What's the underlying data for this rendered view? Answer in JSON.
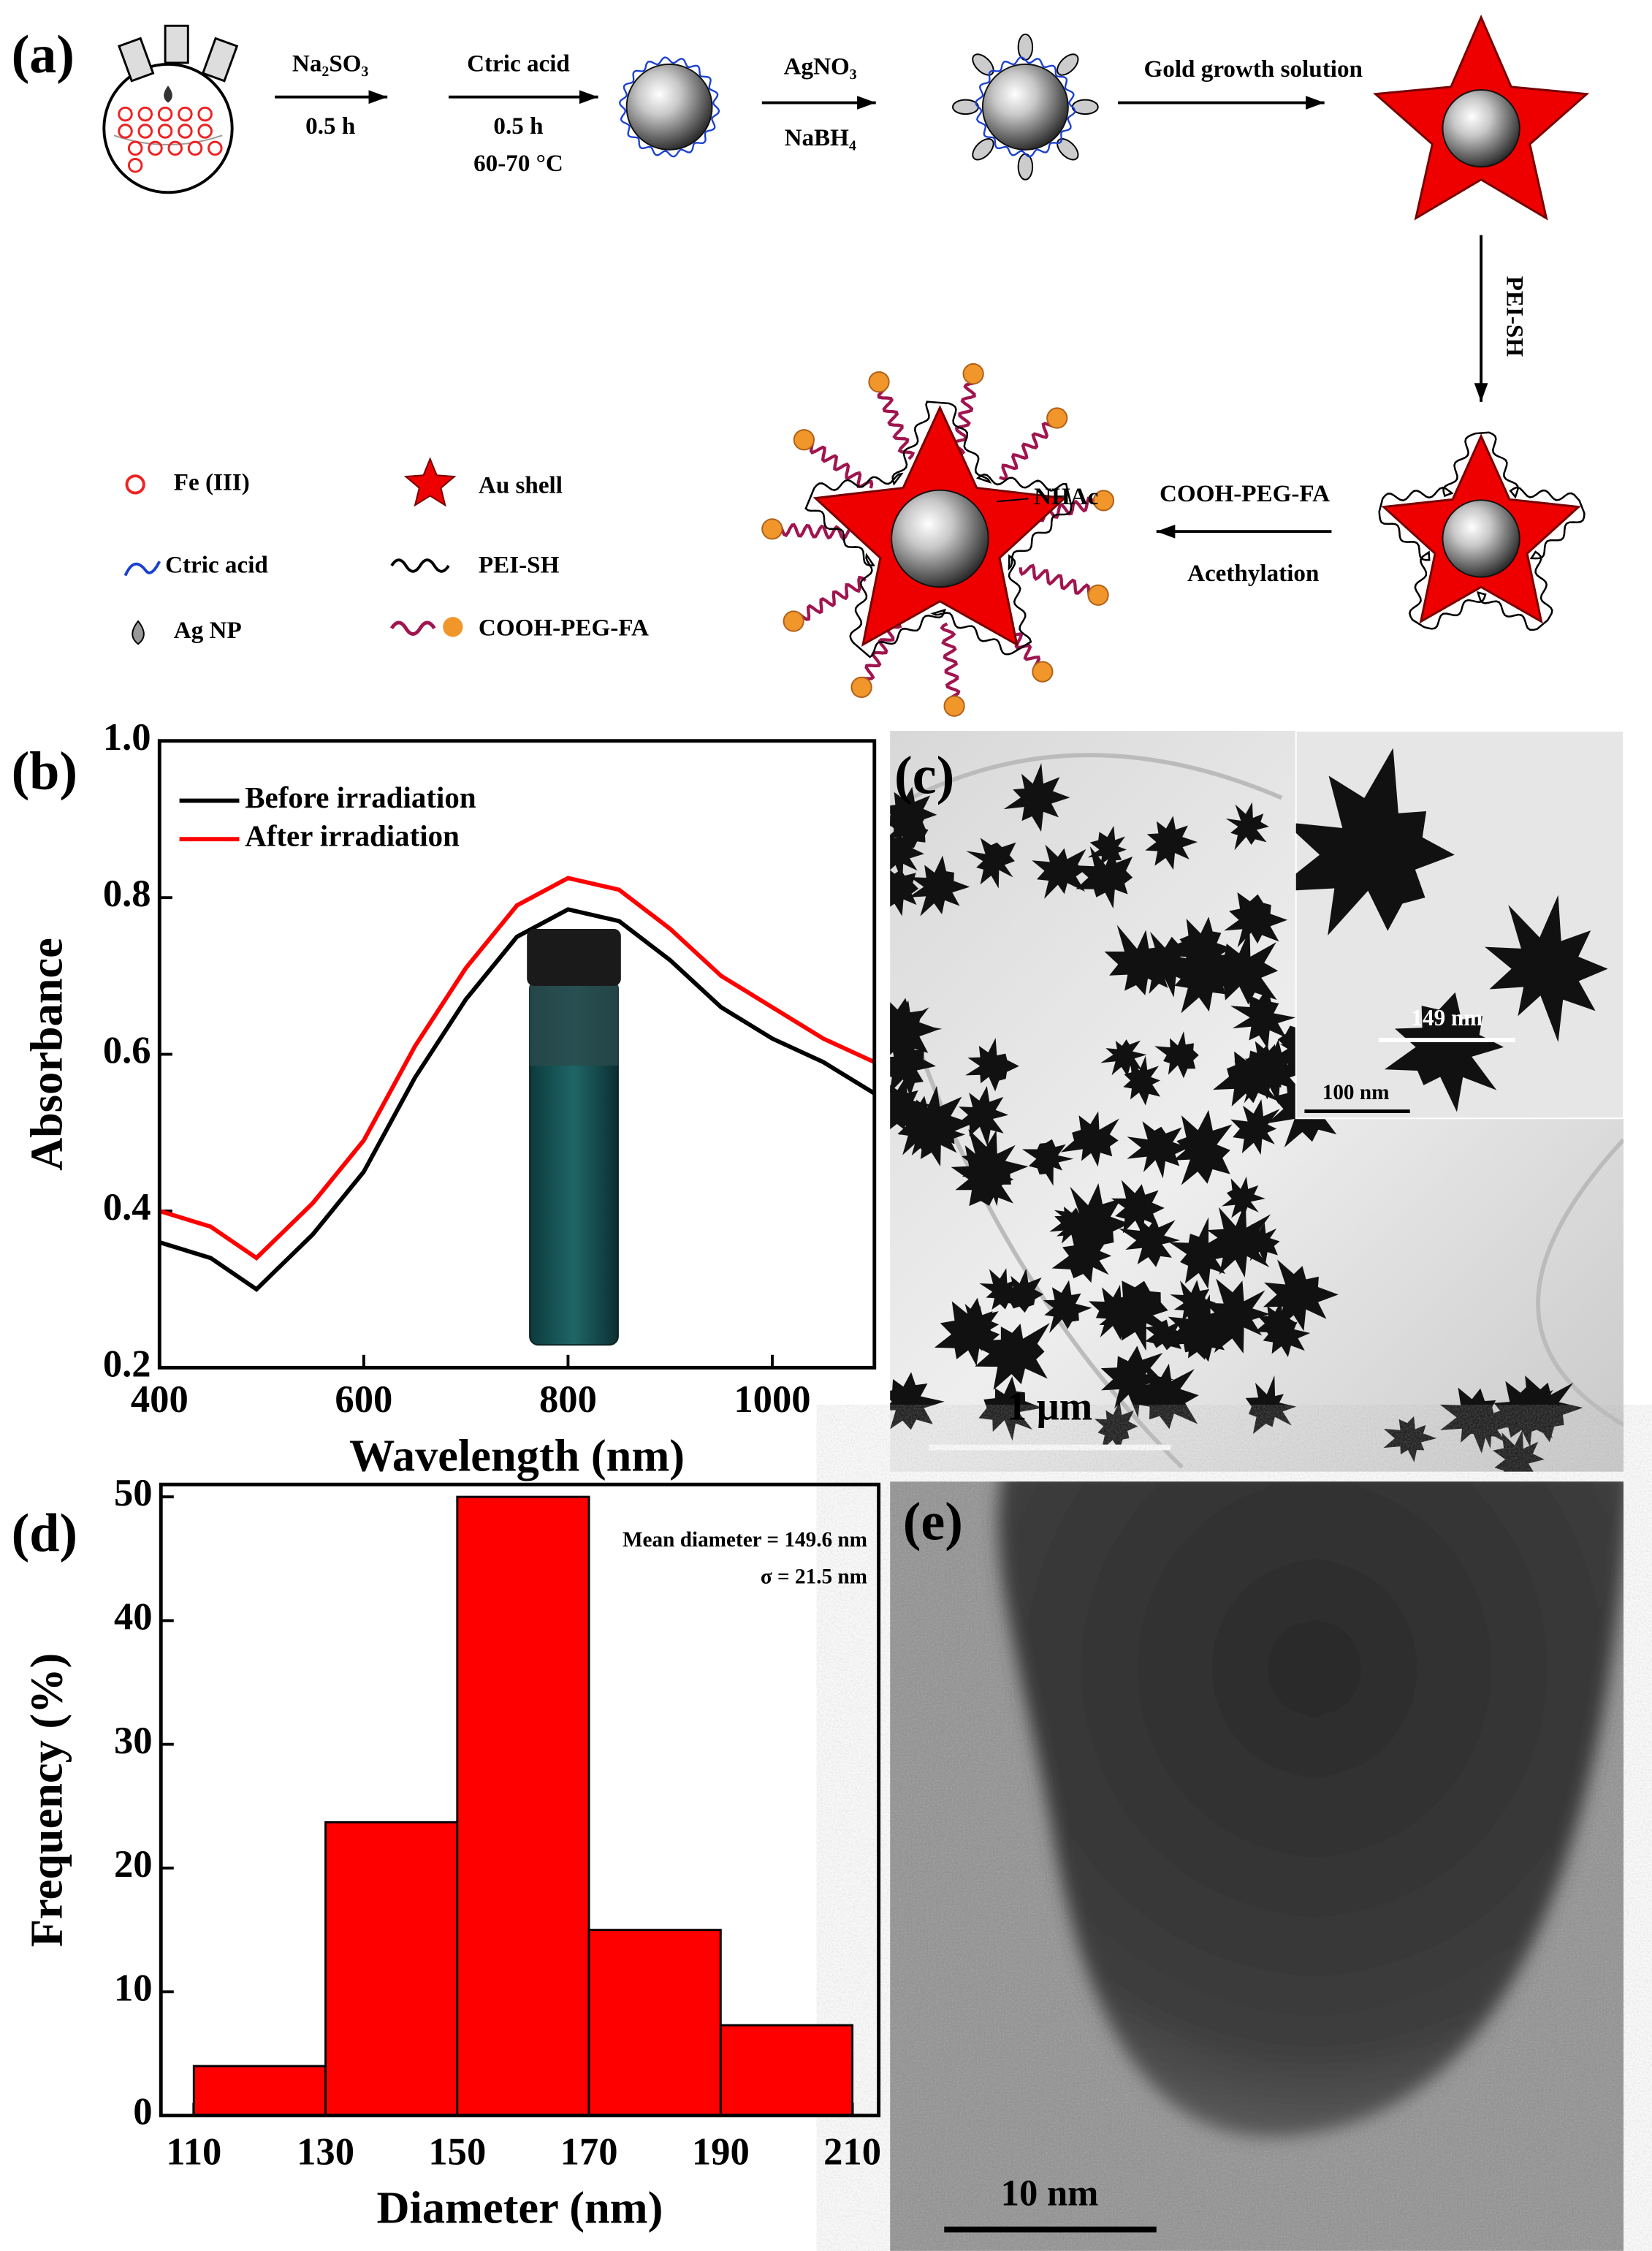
{
  "panel_labels": [
    "(a)",
    "(b)",
    "(c)",
    "(d)",
    "(e)"
  ],
  "diagram": {
    "steps": [
      {
        "reagent": "Na₂SO₃",
        "condition": "0.5 h"
      },
      {
        "reagent": "Ctric acid",
        "condition": "0.5 h",
        "temperature": "60-70 °C"
      },
      {
        "reagent": "AgNO₃",
        "condition": "NaBH₄"
      },
      {
        "reagent": "Gold growth solution"
      },
      {
        "reagent": "PEI-SH"
      },
      {
        "reagent": "COOH-PEG-FA",
        "condition": "Acethylation"
      }
    ],
    "nhac": "NHAc",
    "legend": [
      "Fe (III)",
      "Au shell",
      "Ctric acid",
      "PEI-SH",
      "Ag NP",
      "COOH-PEG-FA"
    ]
  },
  "images": {
    "c": {
      "inset_measure": "149 nm",
      "inset_scale_bar": "100 nm",
      "scale_bar": "1 μm"
    },
    "e": {
      "scale_bar": "10 nm"
    }
  },
  "chart_data": [
    {
      "type": "line",
      "xlabel": "Wavelength (nm)",
      "ylabel": "Absorbance",
      "x": [
        400,
        450,
        495,
        550,
        600,
        650,
        700,
        750,
        800,
        850,
        900,
        950,
        1000,
        1050,
        1100
      ],
      "series": [
        {
          "name": "Before irradiation",
          "color": "#000000",
          "values": [
            0.36,
            0.34,
            0.3,
            0.37,
            0.45,
            0.57,
            0.67,
            0.75,
            0.785,
            0.77,
            0.72,
            0.66,
            0.62,
            0.59,
            0.55
          ]
        },
        {
          "name": "After irradiation",
          "color": "#ff0000",
          "values": [
            0.4,
            0.38,
            0.34,
            0.41,
            0.49,
            0.61,
            0.71,
            0.79,
            0.825,
            0.81,
            0.76,
            0.7,
            0.66,
            0.62,
            0.59
          ]
        }
      ],
      "xlim": [
        400,
        1100
      ],
      "xticks": [
        400,
        600,
        800,
        1000
      ],
      "ylim": [
        0.2,
        1.0
      ],
      "yticks": [
        0.2,
        0.4,
        0.6,
        0.8,
        {
          "value": 1,
          "label": "1.0"
        }
      ],
      "legend": "upper left"
    },
    {
      "type": "histogram",
      "xlabel": "Diameter (nm)",
      "ylabel": "Frequency (%)",
      "bins": [
        110,
        130,
        150,
        170,
        190,
        210
      ],
      "values": [
        4,
        23.7,
        50,
        15,
        7.3
      ],
      "color": "#ff0000",
      "xlim": [
        105,
        214
      ],
      "xticks": [
        110,
        130,
        150,
        170,
        190,
        210
      ],
      "ylim": [
        0,
        51
      ],
      "yticks": [
        0,
        10,
        20,
        30,
        40,
        50
      ],
      "annotations": [
        "Mean diameter = 149.6 nm",
        "σ = 21.5 nm"
      ]
    }
  ]
}
